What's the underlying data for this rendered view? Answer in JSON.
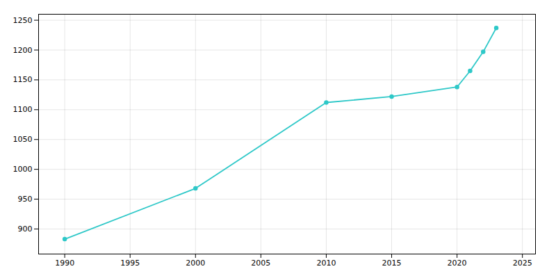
{
  "chart_data": {
    "type": "line",
    "x": [
      1990,
      2000,
      2010,
      2015,
      2020,
      2021,
      2022,
      2023
    ],
    "values": [
      883,
      968,
      1112,
      1122,
      1138,
      1165,
      1197,
      1237
    ],
    "color": "#2ec8c8",
    "marker": "circle",
    "xlim": [
      1988,
      2026
    ],
    "ylim": [
      858,
      1260
    ],
    "xticks": [
      1990,
      1995,
      2000,
      2005,
      2010,
      2015,
      2020,
      2025
    ],
    "yticks": [
      900,
      950,
      1000,
      1050,
      1100,
      1150,
      1200,
      1250
    ],
    "grid": true
  }
}
